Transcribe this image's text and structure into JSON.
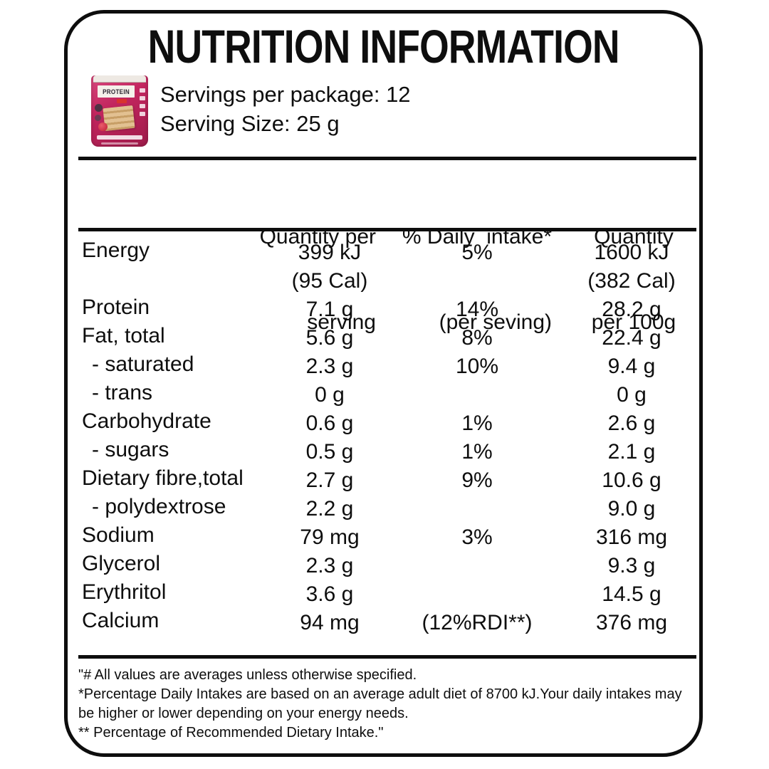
{
  "panel": {
    "title": "NUTRITION INFORMATION",
    "servings_per_package": "Servings per package: 12",
    "serving_size": "Serving Size: 25 g"
  },
  "product": {
    "brand_text": "PROTEIN"
  },
  "colors": {
    "pouch_pink": "#c2255e",
    "pouch_pink_light": "#d84a7e",
    "pouch_pink_dark": "#9e1b4a",
    "pouch_label": "#f5f1ea",
    "wafer_tan": "#e2c091",
    "berry_red": "#c01f33"
  },
  "table": {
    "header": {
      "col2": [
        "Quantity per",
        "serving"
      ],
      "col3": [
        "% Daily  intake*",
        "(per seving)"
      ],
      "col4": [
        "Quantity",
        "per 100g"
      ]
    },
    "rows": [
      {
        "label": "Energy",
        "per_serving": "399 kJ",
        "per_serving_2": "(95 Cal)",
        "daily_intake": "5%",
        "per_100g": "1600 kJ",
        "per_100g_2": "(382 Cal)"
      },
      {
        "label": "Protein",
        "per_serving": "7.1 g",
        "daily_intake": "14%",
        "per_100g": "28.2 g"
      },
      {
        "label": "Fat, total",
        "per_serving": "5.6 g",
        "daily_intake": "8%",
        "per_100g": "22.4 g"
      },
      {
        "label": "- saturated",
        "per_serving": "2.3 g",
        "daily_intake": "10%",
        "per_100g": "9.4 g"
      },
      {
        "label": "- trans",
        "per_serving": "0 g",
        "daily_intake": "",
        "per_100g": "0 g"
      },
      {
        "label": "Carbohydrate",
        "per_serving": "0.6 g",
        "daily_intake": "1%",
        "per_100g": "2.6 g"
      },
      {
        "label": "- sugars",
        "per_serving": "0.5 g",
        "daily_intake": "1%",
        "per_100g": "2.1 g"
      },
      {
        "label": "Dietary fibre,total",
        "per_serving": "2.7 g",
        "daily_intake": "9%",
        "per_100g": "10.6 g"
      },
      {
        "label": "- polydextrose",
        "per_serving": "2.2 g",
        "daily_intake": "",
        "per_100g": "9.0 g"
      },
      {
        "label": "Sodium",
        "per_serving": "79 mg",
        "daily_intake": "3%",
        "per_100g": "316 mg"
      },
      {
        "label": "Glycerol",
        "per_serving": "2.3 g",
        "daily_intake": "",
        "per_100g": "9.3 g"
      },
      {
        "label": "Erythritol",
        "per_serving": "3.6 g",
        "daily_intake": "",
        "per_100g": "14.5 g"
      },
      {
        "label": "Calcium",
        "per_serving": "94 mg",
        "daily_intake": "(12%RDI**)",
        "per_100g": "376 mg"
      }
    ]
  },
  "footnotes": [
    "\"# All values are averages unless otherwise specified.",
    "*Percentage Daily Intakes are based on an average adult diet of 8700 kJ.Your daily intakes may",
    "be higher or lower depending on your energy needs.",
    "** Percentage of Recommended Dietary Intake.\""
  ]
}
